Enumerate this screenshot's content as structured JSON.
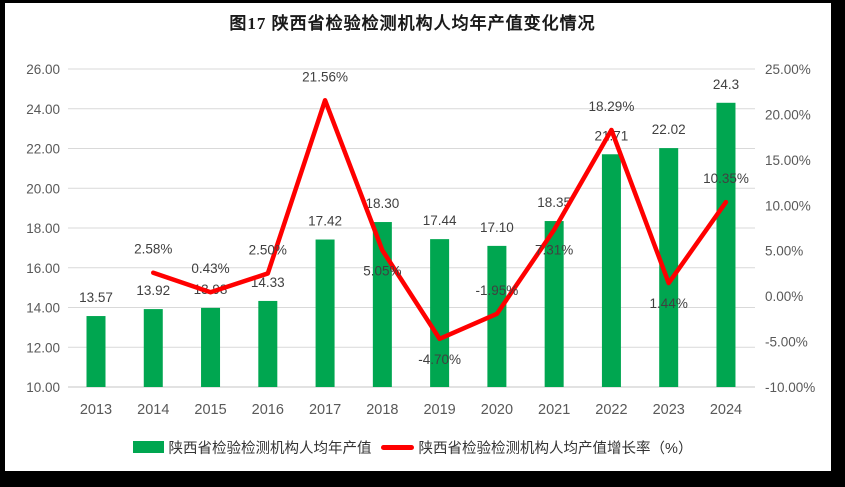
{
  "title": "图17  陕西省检验检测机构人均年产值变化情况",
  "chart_data": {
    "type": "combo_bar_line",
    "title": "图17  陕西省检验检测机构人均年产值变化情况",
    "categories": [
      "2013",
      "2014",
      "2015",
      "2016",
      "2017",
      "2018",
      "2019",
      "2020",
      "2021",
      "2022",
      "2023",
      "2024"
    ],
    "series": [
      {
        "name": "陕西省检验检测机构人均年产值",
        "type": "bar",
        "axis": "left",
        "color": "#00A650",
        "values": [
          13.57,
          13.92,
          13.98,
          14.33,
          17.42,
          18.3,
          17.44,
          17.1,
          18.35,
          21.71,
          22.02,
          24.3
        ],
        "labels": [
          "13.57",
          "13.92",
          "13.98",
          "14.33",
          "17.42",
          "18.30",
          "17.44",
          "17.10",
          "18.35",
          "21.71",
          "22.02",
          "24.3"
        ]
      },
      {
        "name": "陕西省检验检测机构人均产值增长率（%）",
        "type": "line",
        "axis": "right",
        "color": "#FF0000",
        "values": [
          null,
          2.58,
          0.43,
          2.5,
          21.56,
          5.05,
          -4.7,
          -1.95,
          7.31,
          18.29,
          1.44,
          10.35
        ],
        "labels": [
          null,
          "2.58%",
          "0.43%",
          "2.50%",
          "21.56%",
          "5.05%",
          "-4.70%",
          "-1.95%",
          "7.31%",
          "18.29%",
          "1.44%",
          "10.35%"
        ],
        "label_pos": [
          null,
          "above",
          "above",
          "above",
          "above",
          "below",
          "below",
          "above",
          "below",
          "above",
          "below",
          "above"
        ]
      }
    ],
    "left_axis": {
      "min": 10,
      "max": 26,
      "step": 2,
      "ticks": [
        "26.00",
        "24.00",
        "22.00",
        "20.00",
        "18.00",
        "16.00",
        "14.00",
        "12.00",
        "10.00"
      ]
    },
    "right_axis": {
      "min": -10,
      "max": 25,
      "step": 5,
      "ticks": [
        "25.00%",
        "20.00%",
        "15.00%",
        "10.00%",
        "5.00%",
        "0.00%",
        "-5.00%",
        "-10.00%"
      ]
    },
    "grid": true,
    "legend_position": "bottom"
  },
  "colors": {
    "bar": "#00A650",
    "line": "#FF0000",
    "gridline": "#D9D9D9",
    "baseline": "#C6C6C6",
    "tick_text": "#595959",
    "data_label": "#404040",
    "frame": "#000000"
  }
}
